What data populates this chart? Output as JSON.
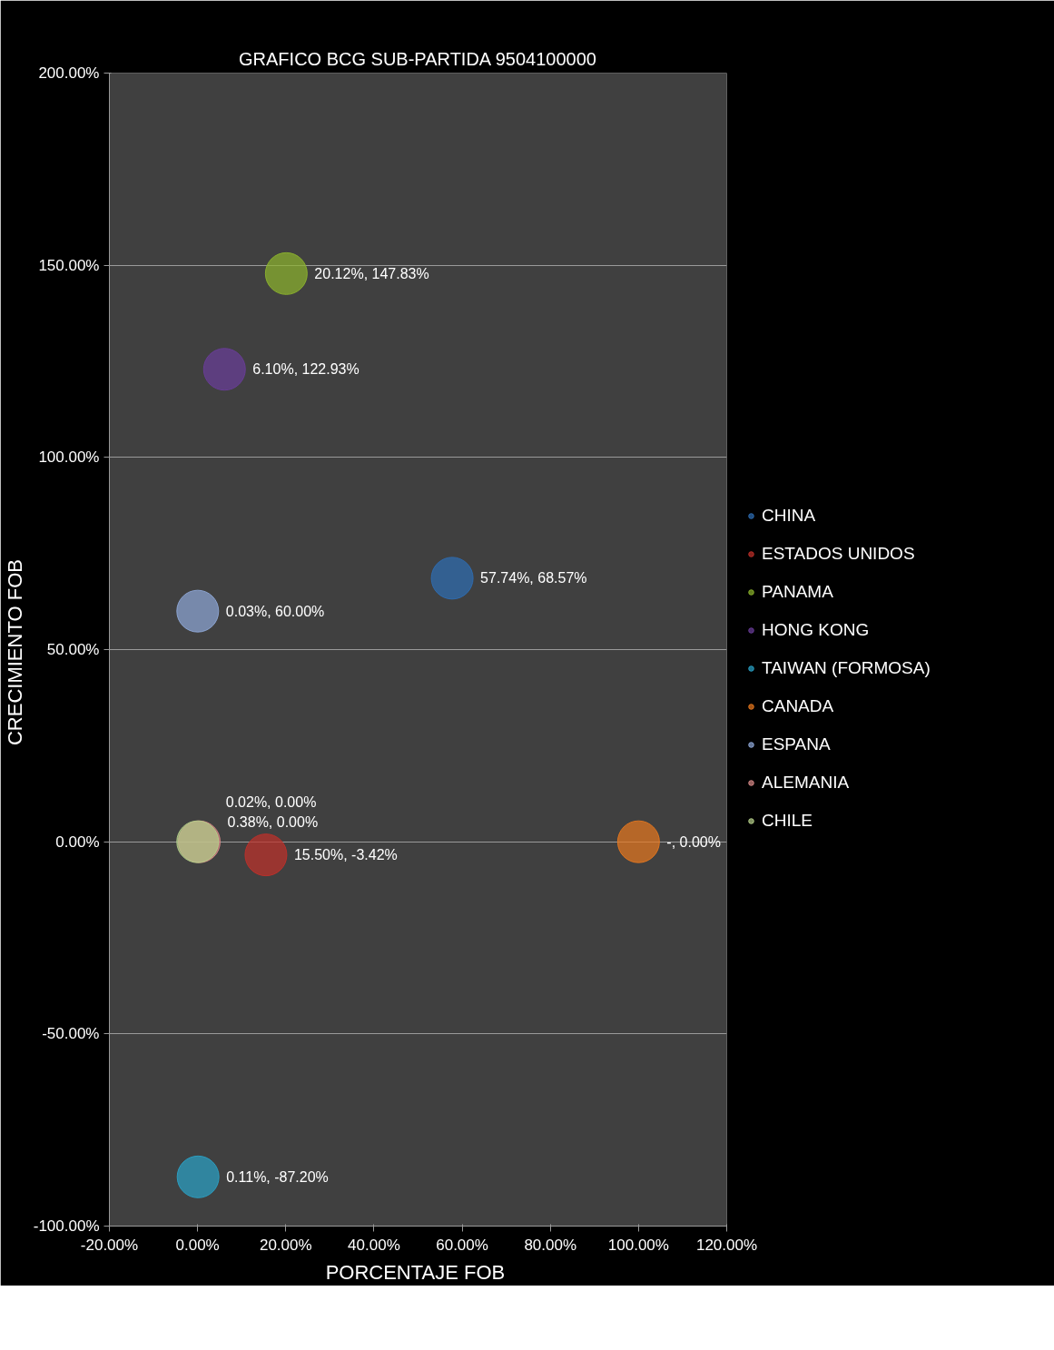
{
  "chart_data": {
    "type": "bubble",
    "title": "GRAFICO BCG SUB-PARTIDA 9504100000",
    "xlabel": "PORCENTAJE  FOB",
    "ylabel": "CRECIMIENTO  FOB",
    "xlim": [
      -20,
      120
    ],
    "ylim": [
      -100,
      200
    ],
    "xticks": [
      {
        "value": -20,
        "label": "-20.00%"
      },
      {
        "value": 0,
        "label": "0.00%"
      },
      {
        "value": 20,
        "label": "20.00%"
      },
      {
        "value": 40,
        "label": "40.00%"
      },
      {
        "value": 60,
        "label": "60.00%"
      },
      {
        "value": 80,
        "label": "80.00%"
      },
      {
        "value": 100,
        "label": "100.00%"
      },
      {
        "value": 120,
        "label": "120.00%"
      }
    ],
    "yticks": [
      {
        "value": -100,
        "label": "-100.00%"
      },
      {
        "value": -50,
        "label": "-50.00%"
      },
      {
        "value": 0,
        "label": "0.00%"
      },
      {
        "value": 50,
        "label": "50.00%"
      },
      {
        "value": 100,
        "label": "100.00%"
      },
      {
        "value": 150,
        "label": "150.00%"
      },
      {
        "value": 200,
        "label": "200.00%"
      }
    ],
    "grid": "y",
    "legend": "right",
    "series": [
      {
        "name": "CHINA",
        "color": "#2e6db4",
        "x": [
          57.74
        ],
        "values": [
          68.57
        ],
        "sizes": [
          1
        ],
        "value_labels": [
          "57.74%, 68.57%"
        ]
      },
      {
        "name": "ESTADOS UNIDOS",
        "color": "#c0302a",
        "x": [
          15.5
        ],
        "values": [
          -3.42
        ],
        "sizes": [
          1
        ],
        "value_labels": [
          "15.50%, -3.42%"
        ]
      },
      {
        "name": "PANAMA",
        "color": "#8db52c",
        "x": [
          20.12
        ],
        "values": [
          147.83
        ],
        "sizes": [
          1
        ],
        "value_labels": [
          "20.12%, 147.83%"
        ]
      },
      {
        "name": "HONG KONG",
        "color": "#6a3d9a",
        "x": [
          6.1
        ],
        "values": [
          122.93
        ],
        "sizes": [
          1
        ],
        "value_labels": [
          "6.10%, 122.93%"
        ]
      },
      {
        "name": "TAIWAN (FORMOSA)",
        "color": "#2aa3c8",
        "x": [
          0.11
        ],
        "values": [
          -87.2
        ],
        "sizes": [
          1
        ],
        "value_labels": [
          "0.11%, -87.20%"
        ]
      },
      {
        "name": "CANADA",
        "color": "#e8781e",
        "x": [
          100
        ],
        "values": [
          0
        ],
        "sizes": [
          1
        ],
        "value_labels": [
          "-, 0.00%"
        ]
      },
      {
        "name": "ESPANA",
        "color": "#8fa8d8",
        "x": [
          0.03
        ],
        "values": [
          60
        ],
        "sizes": [
          1
        ],
        "value_labels": [
          "0.03%, 60.00%"
        ]
      },
      {
        "name": "ALEMANIA",
        "color": "#d88a88",
        "x": [
          0.38
        ],
        "values": [
          0
        ],
        "sizes": [
          1
        ],
        "value_labels": [
          "0.38%, 0.00%"
        ]
      },
      {
        "name": "CHILE",
        "color": "#b5cf8a",
        "x": [
          0.02
        ],
        "values": [
          0
        ],
        "sizes": [
          1
        ],
        "value_labels": [
          "0.02%, 0.00%"
        ]
      }
    ]
  }
}
